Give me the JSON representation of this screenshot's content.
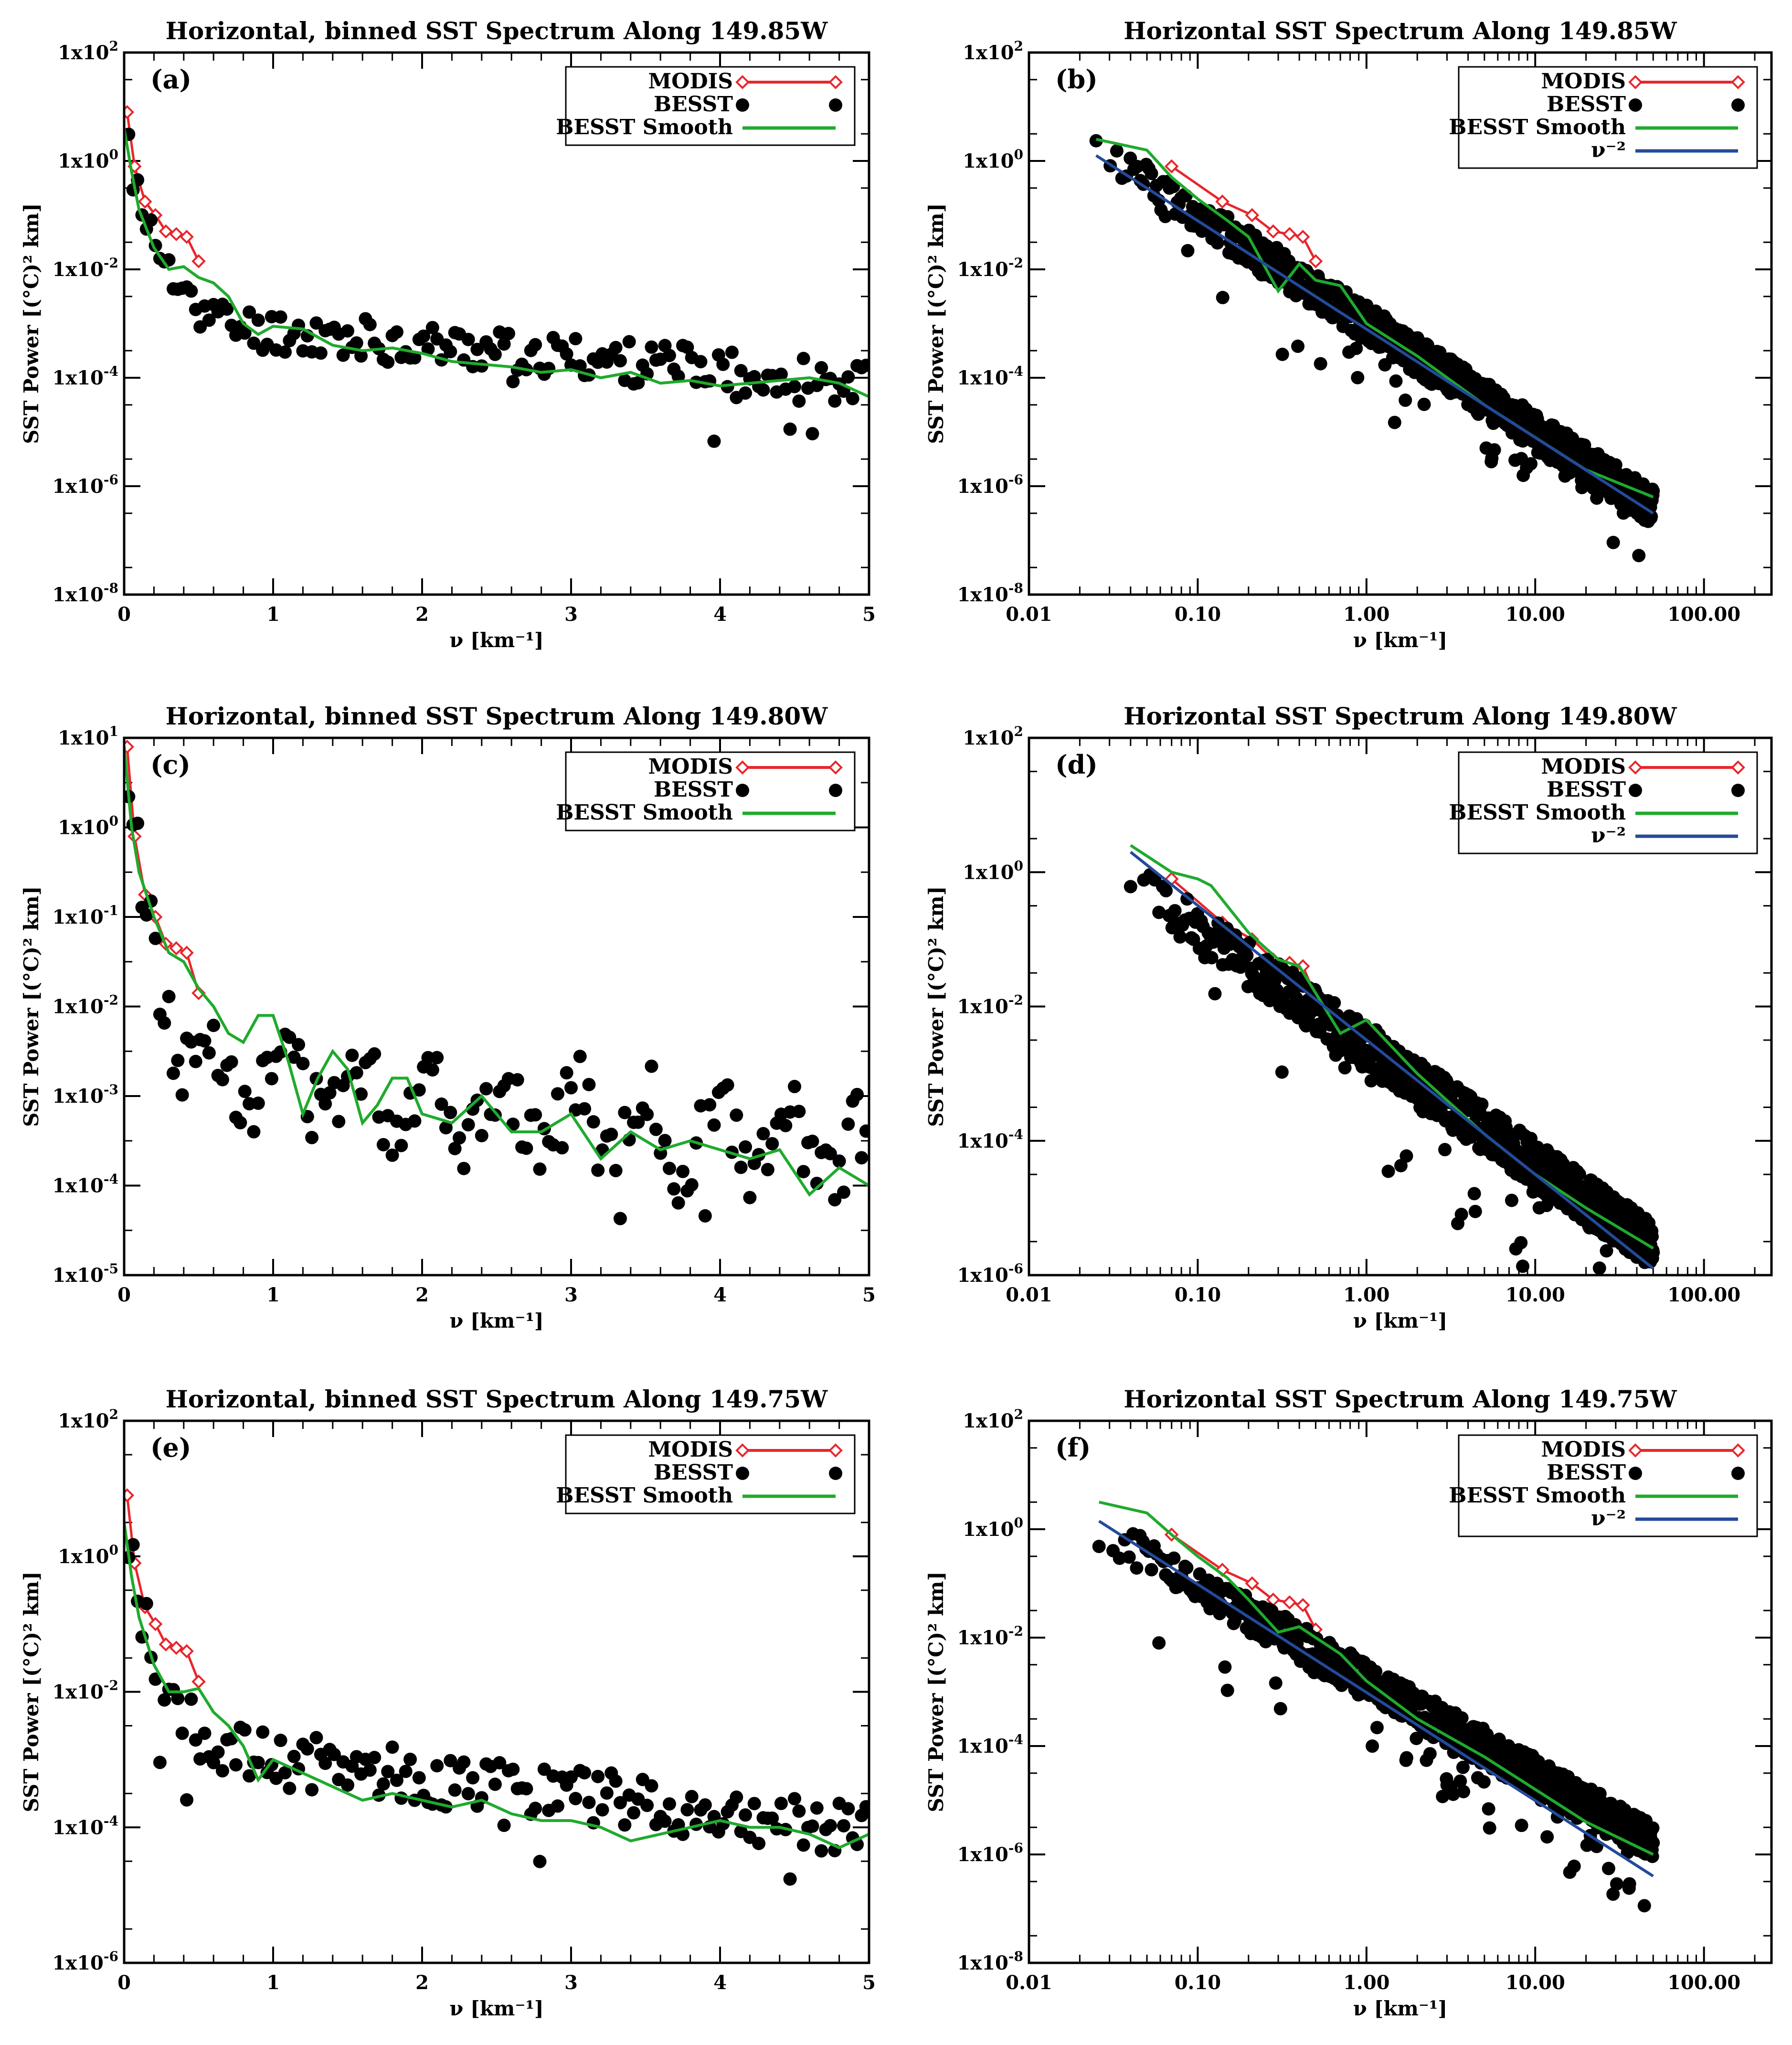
{
  "figure": {
    "colors": {
      "modis": "#e8262c",
      "besst": "#000000",
      "smooth": "#1faa2d",
      "power": "#234a9c"
    }
  },
  "chart_data": [
    {
      "id": "a",
      "type": "scatter",
      "title": "Horizontal, binned SST Spectrum Along 149.85W",
      "panel_label": "(a)",
      "xscale": "linear",
      "xlim": [
        0,
        5
      ],
      "xticks": [
        0,
        1,
        2,
        3,
        4,
        5
      ],
      "xtick_labels": [
        "0",
        "1",
        "2",
        "3",
        "4",
        "5"
      ],
      "ylim_exp": [
        -8,
        2
      ],
      "yticks_exp": [
        2,
        0,
        -2,
        -4,
        -6,
        -8
      ],
      "ytick_labels": [
        "1x10^2",
        "1x10^0",
        "1x10^-2",
        "1x10^-4",
        "1x10^-6",
        "1x10^-8"
      ],
      "xlabel": "ν [km⁻¹]",
      "ylabel": "SST Power [(°C)² km]",
      "legend": [
        "MODIS",
        "BESST",
        "BESST Smooth"
      ],
      "series": [
        {
          "name": "MODIS",
          "kind": "line_marker",
          "x": [
            0.02,
            0.07,
            0.14,
            0.21,
            0.28,
            0.35,
            0.42,
            0.5
          ],
          "y_log": [
            0.9,
            -0.1,
            -0.75,
            -1.0,
            -1.3,
            -1.35,
            -1.4,
            -1.85
          ]
        },
        {
          "name": "BESST",
          "kind": "scatter",
          "pattern": "flat",
          "x_start": 0.03,
          "x_step": 0.03,
          "x_end": 5.0,
          "y_log_start": 0.6,
          "y_log_end": -4.1,
          "decay": 0.25,
          "knee": 0.85,
          "seed": 11,
          "ripple": 0.0
        },
        {
          "name": "BESST Smooth",
          "kind": "line_smooth",
          "x": [
            0.0,
            0.05,
            0.1,
            0.2,
            0.3,
            0.4,
            0.5,
            0.6,
            0.7,
            0.8,
            0.9,
            1.0,
            1.2,
            1.4,
            1.6,
            1.8,
            2.0,
            2.2,
            2.4,
            2.6,
            2.8,
            3.0,
            3.2,
            3.4,
            3.6,
            3.8,
            4.0,
            4.2,
            4.4,
            4.6,
            4.8,
            5.0
          ],
          "y_log": [
            0.6,
            -0.2,
            -0.9,
            -1.6,
            -2.0,
            -1.95,
            -2.15,
            -2.25,
            -2.5,
            -3.0,
            -3.2,
            -3.05,
            -3.1,
            -3.4,
            -3.5,
            -3.45,
            -3.55,
            -3.7,
            -3.75,
            -3.8,
            -3.9,
            -3.85,
            -4.0,
            -3.9,
            -4.1,
            -4.05,
            -4.15,
            -4.1,
            -4.05,
            -4.0,
            -4.1,
            -4.35
          ]
        }
      ]
    },
    {
      "id": "b",
      "type": "scatter",
      "title": "Horizontal SST Spectrum Along 149.85W",
      "panel_label": "(b)",
      "xscale": "log",
      "xlim_exp": [
        -2,
        2.4
      ],
      "xticks_exp": [
        -2,
        -1,
        0,
        1,
        2
      ],
      "xtick_labels": [
        "0.01",
        "0.10",
        "1.00",
        "10.00",
        "100.00"
      ],
      "ylim_exp": [
        -8,
        2
      ],
      "yticks_exp": [
        2,
        0,
        -2,
        -4,
        -6,
        -8
      ],
      "ytick_labels": [
        "1x10^2",
        "1x10^0",
        "1x10^-2",
        "1x10^-4",
        "1x10^-6",
        "1x10^-8"
      ],
      "xlabel": "ν [km⁻¹]",
      "ylabel": "SST Power [(°C)² km]",
      "legend": [
        "MODIS",
        "BESST",
        "BESST Smooth",
        "ν⁻²"
      ],
      "series": [
        {
          "name": "MODIS",
          "kind": "line_marker",
          "x": [
            0.07,
            0.14,
            0.21,
            0.28,
            0.35,
            0.42,
            0.5
          ],
          "y_log": [
            -0.1,
            -0.75,
            -1.0,
            -1.3,
            -1.35,
            -1.4,
            -1.85
          ]
        },
        {
          "name": "BESST",
          "kind": "scatter",
          "pattern": "powerlaw",
          "x_start": 0.025,
          "x_end": 50.0,
          "n": 800,
          "y_log_at_1": -3.0,
          "slope": -2.0,
          "seed": 12
        },
        {
          "name": "BESST Smooth",
          "kind": "line_smooth",
          "x": [
            0.025,
            0.05,
            0.07,
            0.1,
            0.15,
            0.2,
            0.3,
            0.4,
            0.5,
            0.7,
            1.0,
            2.0,
            5.0,
            10.0,
            20.0,
            50.0
          ],
          "y_log": [
            0.4,
            0.2,
            -0.3,
            -0.7,
            -1.1,
            -1.4,
            -2.4,
            -1.9,
            -2.2,
            -2.3,
            -3.0,
            -3.6,
            -4.5,
            -5.1,
            -5.7,
            -6.2
          ]
        },
        {
          "name": "ν⁻²",
          "kind": "line_power",
          "x": [
            0.025,
            50.0
          ],
          "y_log": [
            0.1,
            -6.5
          ]
        }
      ]
    },
    {
      "id": "c",
      "type": "scatter",
      "title": "Horizontal, binned SST Spectrum Along 149.80W",
      "panel_label": "(c)",
      "xscale": "linear",
      "xlim": [
        0,
        5
      ],
      "xticks": [
        0,
        1,
        2,
        3,
        4,
        5
      ],
      "xtick_labels": [
        "0",
        "1",
        "2",
        "3",
        "4",
        "5"
      ],
      "ylim_exp": [
        -5,
        1
      ],
      "yticks_exp": [
        1,
        0,
        -1,
        -2,
        -3,
        -4,
        -5
      ],
      "ytick_labels": [
        "1x10^1",
        "1x10^0",
        "1x10^-1",
        "1x10^-2",
        "1x10^-3",
        "1x10^-4",
        "1x10^-5"
      ],
      "xlabel": "ν [km⁻¹]",
      "ylabel": "SST Power [(°C)² km]",
      "legend": [
        "MODIS",
        "BESST",
        "BESST Smooth"
      ],
      "series": [
        {
          "name": "MODIS",
          "kind": "line_marker",
          "x": [
            0.02,
            0.07,
            0.14,
            0.21,
            0.28,
            0.35,
            0.42,
            0.5
          ],
          "y_log": [
            0.9,
            -0.1,
            -0.75,
            -1.0,
            -1.3,
            -1.35,
            -1.4,
            -1.85
          ]
        },
        {
          "name": "BESST",
          "kind": "scatter",
          "pattern": "oscillating",
          "x_start": 0.03,
          "x_step": 0.03,
          "x_end": 5.0,
          "y_log_start": 0.6,
          "y_log_end": -3.7,
          "decay": 0.22,
          "knee": 0.6,
          "seed": 13,
          "ripple": 0.35
        },
        {
          "name": "BESST Smooth",
          "kind": "line_smooth",
          "x": [
            0.0,
            0.05,
            0.1,
            0.2,
            0.3,
            0.4,
            0.5,
            0.6,
            0.7,
            0.8,
            0.9,
            1.0,
            1.1,
            1.2,
            1.3,
            1.4,
            1.5,
            1.6,
            1.7,
            1.8,
            1.9,
            2.0,
            2.2,
            2.4,
            2.6,
            2.8,
            3.0,
            3.2,
            3.4,
            3.6,
            3.8,
            4.0,
            4.2,
            4.4,
            4.6,
            4.8,
            5.0
          ],
          "y_log": [
            0.9,
            0.0,
            -0.5,
            -1.0,
            -1.4,
            -1.5,
            -1.8,
            -2.0,
            -2.3,
            -2.4,
            -2.1,
            -2.1,
            -2.6,
            -3.2,
            -2.8,
            -2.5,
            -2.7,
            -3.3,
            -3.1,
            -2.8,
            -2.8,
            -3.2,
            -3.3,
            -3.0,
            -3.4,
            -3.4,
            -3.2,
            -3.7,
            -3.4,
            -3.6,
            -3.5,
            -3.6,
            -3.7,
            -3.6,
            -4.1,
            -3.8,
            -4.0
          ]
        }
      ]
    },
    {
      "id": "d",
      "type": "scatter",
      "title": "Horizontal SST Spectrum Along 149.80W",
      "panel_label": "(d)",
      "xscale": "log",
      "xlim_exp": [
        -2,
        2.4
      ],
      "xticks_exp": [
        -2,
        -1,
        0,
        1,
        2
      ],
      "xtick_labels": [
        "0.01",
        "0.10",
        "1.00",
        "10.00",
        "100.00"
      ],
      "ylim_exp": [
        -6,
        2
      ],
      "yticks_exp": [
        2,
        0,
        -2,
        -4,
        -6
      ],
      "ytick_labels": [
        "1x10^2",
        "1x10^0",
        "1x10^-2",
        "1x10^-4",
        "1x10^-6"
      ],
      "xlabel": "ν [km⁻¹]",
      "ylabel": "SST Power [(°C)² km]",
      "legend": [
        "MODIS",
        "BESST",
        "BESST Smooth",
        "ν⁻²"
      ],
      "series": [
        {
          "name": "MODIS",
          "kind": "line_marker",
          "x": [
            0.07,
            0.14,
            0.21,
            0.28,
            0.35,
            0.42,
            0.5
          ],
          "y_log": [
            -0.1,
            -0.75,
            -1.0,
            -1.3,
            -1.35,
            -1.4,
            -1.85
          ]
        },
        {
          "name": "BESST",
          "kind": "scatter",
          "pattern": "powerlaw",
          "x_start": 0.04,
          "x_end": 50.0,
          "n": 800,
          "y_log_at_1": -2.6,
          "slope": -1.75,
          "seed": 14
        },
        {
          "name": "BESST Smooth",
          "kind": "line_smooth",
          "x": [
            0.04,
            0.07,
            0.1,
            0.12,
            0.2,
            0.3,
            0.4,
            0.5,
            0.7,
            1.0,
            2.0,
            5.0,
            10.0,
            20.0,
            50.0
          ],
          "y_log": [
            0.4,
            0.0,
            -0.1,
            -0.2,
            -0.9,
            -1.3,
            -1.4,
            -1.8,
            -2.4,
            -2.2,
            -3.0,
            -3.9,
            -4.5,
            -5.0,
            -5.6
          ]
        },
        {
          "name": "ν⁻²",
          "kind": "line_power",
          "x": [
            0.04,
            50.0
          ],
          "y_log": [
            0.3,
            -5.9
          ]
        }
      ]
    },
    {
      "id": "e",
      "type": "scatter",
      "title": "Horizontal, binned SST Spectrum Along 149.75W",
      "panel_label": "(e)",
      "xscale": "linear",
      "xlim": [
        0,
        5
      ],
      "xticks": [
        0,
        1,
        2,
        3,
        4,
        5
      ],
      "xtick_labels": [
        "0",
        "1",
        "2",
        "3",
        "4",
        "5"
      ],
      "ylim_exp": [
        -6,
        2
      ],
      "yticks_exp": [
        2,
        0,
        -2,
        -4,
        -6
      ],
      "ytick_labels": [
        "1x10^2",
        "1x10^0",
        "1x10^-2",
        "1x10^-4",
        "1x10^-6"
      ],
      "xlabel": "ν [km⁻¹]",
      "ylabel": "SST Power [(°C)² km]",
      "legend": [
        "MODIS",
        "BESST",
        "BESST Smooth"
      ],
      "series": [
        {
          "name": "MODIS",
          "kind": "line_marker",
          "x": [
            0.02,
            0.07,
            0.14,
            0.21,
            0.28,
            0.35,
            0.42,
            0.5
          ],
          "y_log": [
            0.9,
            -0.1,
            -0.75,
            -1.0,
            -1.3,
            -1.35,
            -1.4,
            -1.85
          ]
        },
        {
          "name": "BESST",
          "kind": "scatter",
          "pattern": "flat",
          "x_start": 0.03,
          "x_step": 0.03,
          "x_end": 5.0,
          "y_log_start": 0.6,
          "y_log_end": -4.05,
          "decay": 0.25,
          "knee": 1.2,
          "seed": 15,
          "ripple": 0.0
        },
        {
          "name": "BESST Smooth",
          "kind": "line_smooth",
          "x": [
            0.0,
            0.05,
            0.1,
            0.2,
            0.3,
            0.4,
            0.5,
            0.6,
            0.7,
            0.8,
            0.9,
            1.0,
            1.2,
            1.4,
            1.6,
            1.8,
            2.0,
            2.2,
            2.4,
            2.6,
            2.8,
            3.0,
            3.2,
            3.4,
            3.6,
            3.8,
            4.0,
            4.2,
            4.4,
            4.6,
            4.8,
            5.0
          ],
          "y_log": [
            0.5,
            -0.3,
            -0.9,
            -1.6,
            -2.0,
            -2.0,
            -1.95,
            -2.3,
            -2.5,
            -2.8,
            -3.3,
            -3.0,
            -3.2,
            -3.4,
            -3.6,
            -3.5,
            -3.6,
            -3.7,
            -3.6,
            -3.8,
            -3.9,
            -3.9,
            -4.0,
            -4.2,
            -4.1,
            -4.0,
            -3.9,
            -4.0,
            -4.0,
            -4.1,
            -4.3,
            -4.1
          ]
        }
      ]
    },
    {
      "id": "f",
      "type": "scatter",
      "title": "Horizontal SST Spectrum Along 149.75W",
      "panel_label": "(f)",
      "xscale": "log",
      "xlim_exp": [
        -2,
        2.4
      ],
      "xticks_exp": [
        -2,
        -1,
        0,
        1,
        2
      ],
      "xtick_labels": [
        "0.01",
        "0.10",
        "1.00",
        "10.00",
        "100.00"
      ],
      "ylim_exp": [
        -8,
        2
      ],
      "yticks_exp": [
        2,
        0,
        -2,
        -4,
        -6,
        -8
      ],
      "ytick_labels": [
        "1x10^2",
        "1x10^0",
        "1x10^-2",
        "1x10^-4",
        "1x10^-6",
        "1x10^-8"
      ],
      "xlabel": "ν [km⁻¹]",
      "ylabel": "SST Power [(°C)² km]",
      "legend": [
        "MODIS",
        "BESST",
        "BESST Smooth",
        "ν⁻²"
      ],
      "series": [
        {
          "name": "MODIS",
          "kind": "line_marker",
          "x": [
            0.07,
            0.14,
            0.21,
            0.28,
            0.35,
            0.42,
            0.5
          ],
          "y_log": [
            -0.1,
            -0.75,
            -1.0,
            -1.3,
            -1.35,
            -1.4,
            -1.85
          ]
        },
        {
          "name": "BESST",
          "kind": "scatter",
          "pattern": "powerlaw",
          "x_start": 0.026,
          "x_end": 50.0,
          "n": 800,
          "y_log_at_1": -2.8,
          "slope": -1.75,
          "seed": 16
        },
        {
          "name": "BESST Smooth",
          "kind": "line_smooth",
          "x": [
            0.026,
            0.05,
            0.07,
            0.1,
            0.15,
            0.2,
            0.3,
            0.4,
            0.5,
            0.7,
            1.0,
            2.0,
            5.0,
            10.0,
            20.0,
            50.0
          ],
          "y_log": [
            0.5,
            0.3,
            -0.1,
            -0.5,
            -0.9,
            -1.3,
            -1.9,
            -1.8,
            -2.0,
            -2.3,
            -2.8,
            -3.5,
            -4.2,
            -4.8,
            -5.4,
            -6.0
          ]
        },
        {
          "name": "ν⁻²",
          "kind": "line_power",
          "x": [
            0.026,
            50.0
          ],
          "y_log": [
            0.15,
            -6.4
          ]
        }
      ]
    }
  ]
}
